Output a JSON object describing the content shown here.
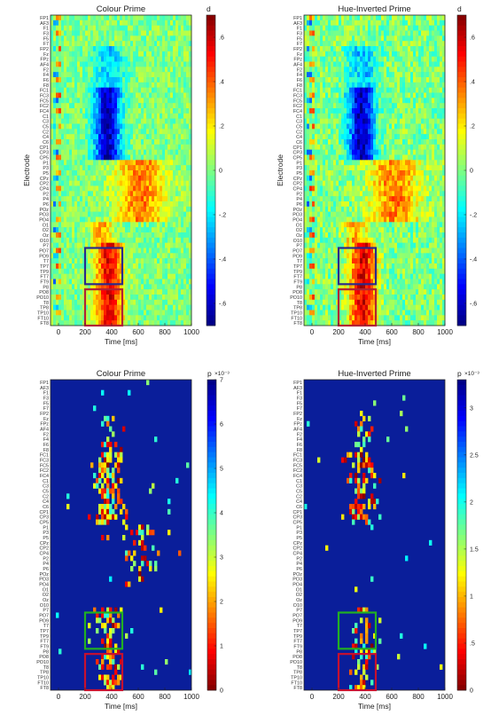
{
  "chart_data": [
    {
      "type": "heatmap",
      "title": "Colour Prime",
      "xlabel": "Time [ms]",
      "ylabel": "Electrode",
      "xlim": [
        -60,
        1000
      ],
      "xticks": [
        0,
        200,
        400,
        600,
        800,
        1000
      ],
      "colorbar": {
        "label": "d",
        "min": -0.7,
        "max": 0.7,
        "ticks": [
          ".6",
          ".4",
          ".2",
          "0",
          "-.2",
          "-.4",
          "-.6"
        ],
        "tick_values": [
          0.6,
          0.4,
          0.2,
          0,
          -0.2,
          -0.4,
          -0.6
        ],
        "colormap": "jet"
      },
      "electrodes": [
        "FP1",
        "AF3",
        "F1",
        "F3",
        "F5",
        "F7",
        "FP2",
        "Fz",
        "FPz",
        "AF4",
        "F2",
        "F4",
        "F6",
        "F8",
        "FC1",
        "FC3",
        "FC5",
        "FC2",
        "FC4",
        "C1",
        "C3",
        "C5",
        "C2",
        "C4",
        "C6",
        "CP1",
        "CP3",
        "CP5",
        "P1",
        "P3",
        "P5",
        "CPz",
        "CP2",
        "CP4",
        "P2",
        "P4",
        "P6",
        "POz",
        "PO3",
        "PO4",
        "O1",
        "O2",
        "Oz",
        "O10",
        "P7",
        "PO7",
        "PO9",
        "T7",
        "TP7",
        "TP9",
        "FT7",
        "FT9",
        "P8",
        "PO8",
        "PO10",
        "T8",
        "TP8",
        "TP10",
        "FT10",
        "FT8"
      ],
      "boxes": [
        {
          "color": "#2a2a8c",
          "x": [
            200,
            480
          ],
          "electrodes": [
            "PO7",
            "FT9"
          ]
        },
        {
          "color": "#b22234",
          "x": [
            200,
            480
          ],
          "electrodes": [
            "PO8",
            "FT8"
          ]
        }
      ]
    },
    {
      "type": "heatmap",
      "title": "Hue-Inverted Prime",
      "xlabel": "Time [ms]",
      "ylabel": "Electrode",
      "xlim": [
        -60,
        1000
      ],
      "xticks": [
        0,
        200,
        400,
        600,
        800,
        1000
      ],
      "colorbar": {
        "label": "d",
        "min": -0.7,
        "max": 0.7,
        "ticks": [
          ".6",
          ".4",
          ".2",
          "0",
          "-.2",
          "-.4",
          "-.6"
        ],
        "tick_values": [
          0.6,
          0.4,
          0.2,
          0,
          -0.2,
          -0.4,
          -0.6
        ],
        "colormap": "jet"
      },
      "electrodes": [
        "FP1",
        "AF3",
        "F1",
        "F3",
        "F5",
        "F7",
        "FP2",
        "Fz",
        "FPz",
        "AF4",
        "F2",
        "F4",
        "F6",
        "F8",
        "FC1",
        "FC3",
        "FC5",
        "FC2",
        "FC4",
        "C1",
        "C3",
        "C5",
        "C2",
        "C4",
        "C6",
        "CP1",
        "CP3",
        "CP5",
        "P1",
        "P3",
        "P5",
        "CPz",
        "CP2",
        "CP4",
        "P2",
        "P4",
        "P6",
        "POz",
        "PO3",
        "PO4",
        "O1",
        "O2",
        "Oz",
        "O10",
        "P7",
        "PO7",
        "PO9",
        "T7",
        "TP7",
        "TP9",
        "FT7",
        "FT9",
        "P8",
        "PO8",
        "PO10",
        "T8",
        "TP8",
        "TP10",
        "FT10",
        "FT8"
      ],
      "boxes": [
        {
          "color": "#2a2a8c",
          "x": [
            200,
            480
          ],
          "electrodes": [
            "PO7",
            "FT9"
          ]
        },
        {
          "color": "#b22234",
          "x": [
            200,
            480
          ],
          "electrodes": [
            "PO8",
            "FT8"
          ]
        }
      ]
    },
    {
      "type": "heatmap",
      "title": "Colour Prime",
      "xlabel": "Time [ms]",
      "ylabel": "",
      "xlim": [
        -60,
        1000
      ],
      "xticks": [
        0,
        200,
        400,
        600,
        800,
        1000
      ],
      "colorbar": {
        "label": "p",
        "exponent": "×10⁻³",
        "min": 0,
        "max": 7,
        "ticks": [
          "7",
          "6",
          "5",
          "4",
          "3",
          "2",
          "1",
          "0"
        ],
        "tick_values": [
          7,
          6,
          5,
          4,
          3,
          2,
          1,
          0
        ],
        "colormap": "jet-reversed"
      },
      "electrodes": [
        "FP1",
        "AF3",
        "F1",
        "F3",
        "F5",
        "F7",
        "FP2",
        "Fz",
        "FPz",
        "AF4",
        "F2",
        "F4",
        "F6",
        "F8",
        "FC1",
        "FC3",
        "FC5",
        "FC2",
        "FC4",
        "C1",
        "C3",
        "C5",
        "C2",
        "C4",
        "C6",
        "CP1",
        "CP3",
        "CP5",
        "P1",
        "P3",
        "P5",
        "CPz",
        "CP2",
        "CP4",
        "P2",
        "P4",
        "P6",
        "POz",
        "PO3",
        "PO4",
        "O1",
        "O2",
        "Oz",
        "O10",
        "P7",
        "PO7",
        "PO9",
        "T7",
        "TP7",
        "TP9",
        "FT7",
        "FT9",
        "P8",
        "PO8",
        "PO10",
        "T8",
        "TP8",
        "TP10",
        "FT10",
        "FT8"
      ],
      "boxes": [
        {
          "color": "#22b022",
          "x": [
            200,
            480
          ],
          "electrodes": [
            "PO7",
            "FT9"
          ]
        },
        {
          "color": "#c8102e",
          "x": [
            200,
            480
          ],
          "electrodes": [
            "PO8",
            "FT8"
          ]
        }
      ]
    },
    {
      "type": "heatmap",
      "title": "Hue-Inverted Prime",
      "xlabel": "Time [ms]",
      "ylabel": "",
      "xlim": [
        -60,
        1000
      ],
      "xticks": [
        0,
        200,
        400,
        600,
        800,
        1000
      ],
      "colorbar": {
        "label": "p",
        "exponent": "×10⁻³",
        "min": 0,
        "max": 3.3,
        "ticks": [
          "3",
          "2.5",
          "2",
          "1.5",
          "1",
          ".5",
          "0"
        ],
        "tick_values": [
          3,
          2.5,
          2,
          1.5,
          1,
          0.5,
          0
        ],
        "colormap": "jet-reversed"
      },
      "electrodes": [
        "FP1",
        "AF3",
        "F1",
        "F3",
        "F5",
        "F7",
        "FP2",
        "Fz",
        "FPz",
        "AF4",
        "F2",
        "F4",
        "F6",
        "F8",
        "FC1",
        "FC3",
        "FC5",
        "FC2",
        "FC4",
        "C1",
        "C3",
        "C5",
        "C2",
        "C4",
        "C6",
        "CP1",
        "CP3",
        "CP5",
        "P1",
        "P3",
        "P5",
        "CPz",
        "CP2",
        "CP4",
        "P2",
        "P4",
        "P6",
        "POz",
        "PO3",
        "PO4",
        "O1",
        "O2",
        "Oz",
        "O10",
        "P7",
        "PO7",
        "PO9",
        "T7",
        "TP7",
        "TP9",
        "FT7",
        "FT9",
        "P8",
        "PO8",
        "PO10",
        "T8",
        "TP8",
        "TP10",
        "FT10",
        "FT8"
      ],
      "boxes": [
        {
          "color": "#22b022",
          "x": [
            200,
            480
          ],
          "electrodes": [
            "PO7",
            "FT9"
          ]
        },
        {
          "color": "#c8102e",
          "x": [
            200,
            480
          ],
          "electrodes": [
            "PO8",
            "FT8"
          ]
        }
      ]
    }
  ]
}
